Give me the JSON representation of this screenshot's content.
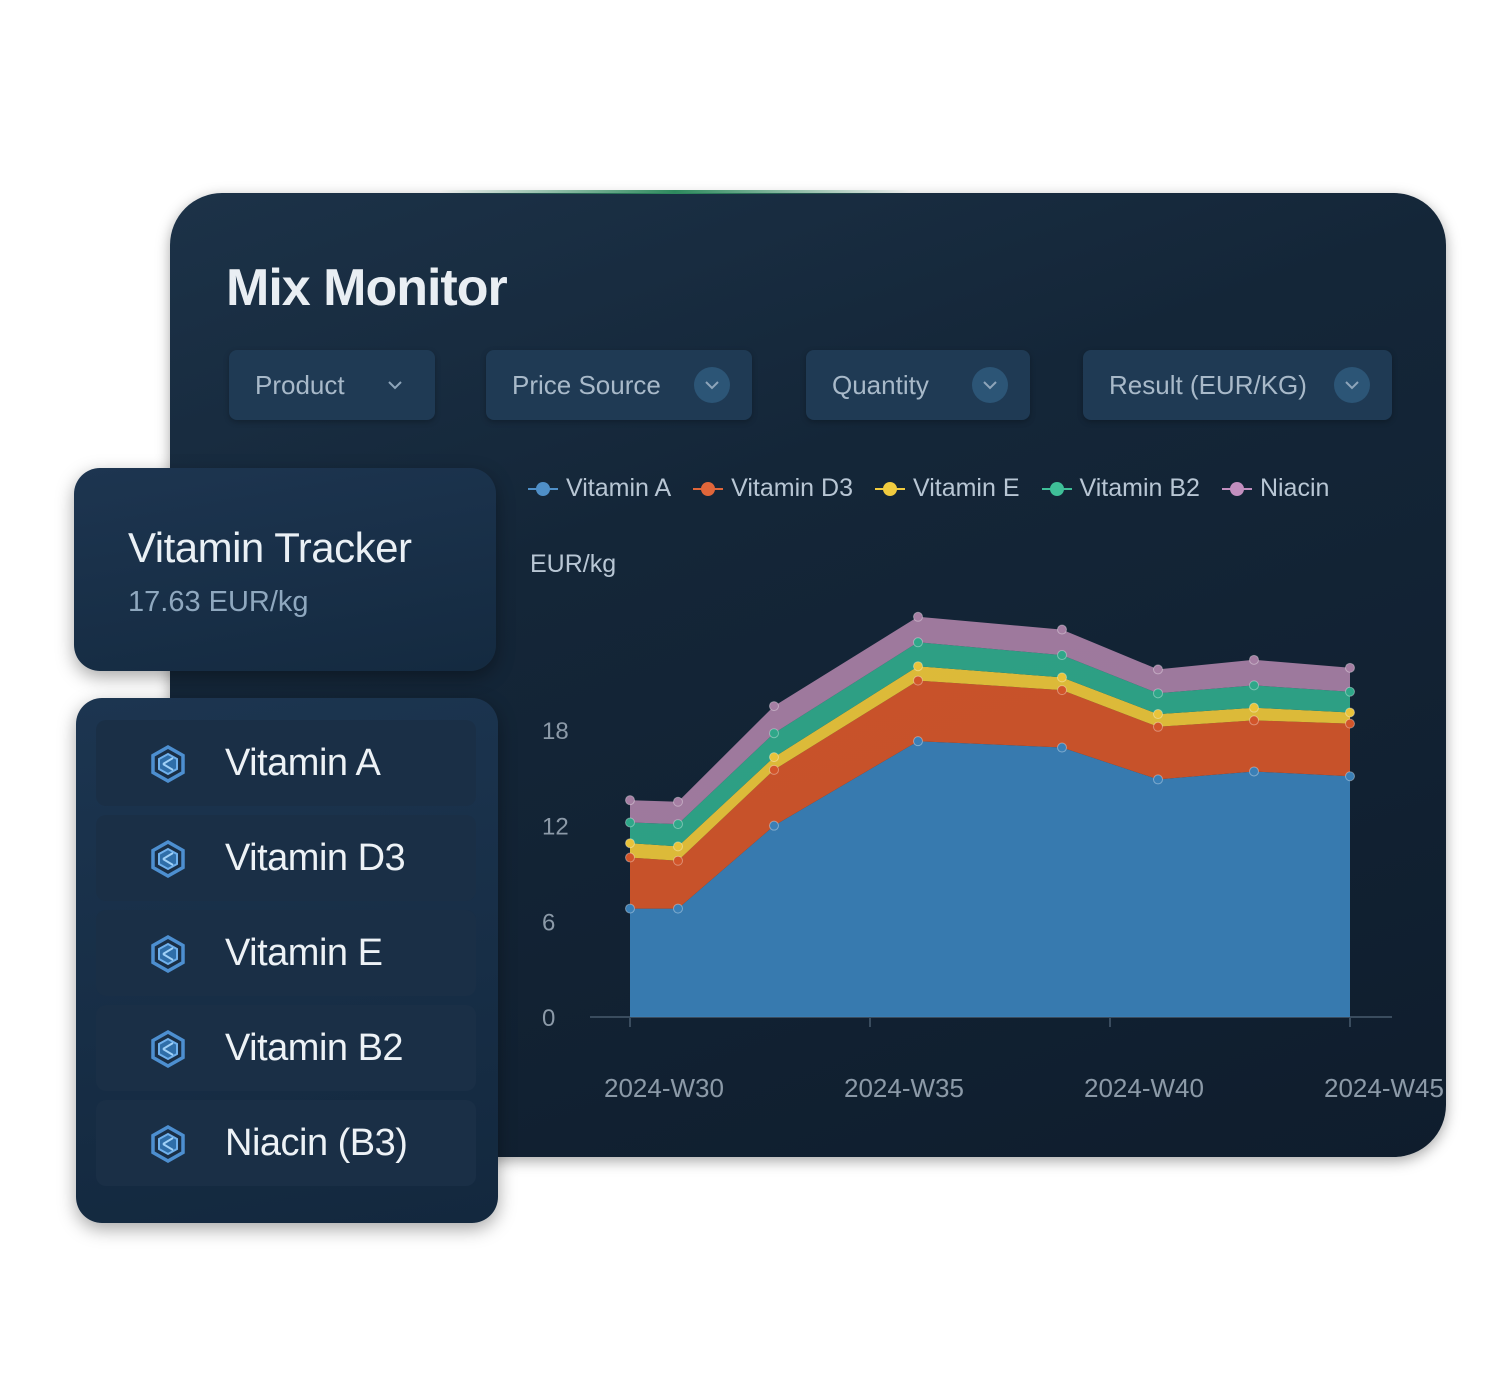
{
  "app": {
    "title": "Mix Monitor"
  },
  "filters": [
    {
      "label": "Product",
      "style": "plain"
    },
    {
      "label": "Price Source",
      "style": "filled"
    },
    {
      "label": "Quantity",
      "style": "filled"
    },
    {
      "label": "Result (EUR/KG)",
      "style": "filled"
    }
  ],
  "tracker": {
    "title": "Vitamin Tracker",
    "value": "17.63 EUR/kg"
  },
  "vitamin_list": [
    {
      "label": "Vitamin A",
      "icon": "hexagon-logo-icon"
    },
    {
      "label": "Vitamin D3",
      "icon": "hexagon-logo-icon"
    },
    {
      "label": "Vitamin E",
      "icon": "hexagon-logo-icon"
    },
    {
      "label": "Vitamin B2",
      "icon": "hexagon-logo-icon"
    },
    {
      "label": "Niacin (B3)",
      "icon": "hexagon-logo-icon"
    }
  ],
  "chart_data": {
    "type": "area",
    "stacked": true,
    "ylabel": "EUR/kg",
    "ylim": [
      0,
      24
    ],
    "yticks": [
      0,
      6,
      12,
      18
    ],
    "x_tick_labels": [
      "2024-W30",
      "2024-W35",
      "2024-W40",
      "2024-W45"
    ],
    "x_tick_weeks": [
      30,
      35,
      40,
      45
    ],
    "x": [
      30,
      31,
      33,
      36,
      39,
      41,
      43,
      45
    ],
    "legend_position": "top",
    "grid": false,
    "series": [
      {
        "name": "Vitamin A",
        "color": "#3a7fb6",
        "values": [
          6.8,
          6.8,
          12.0,
          17.3,
          16.9,
          14.9,
          15.4,
          15.1
        ]
      },
      {
        "name": "Vitamin D3",
        "color": "#d2552a",
        "values": [
          3.2,
          3.0,
          3.5,
          3.8,
          3.6,
          3.3,
          3.2,
          3.3
        ]
      },
      {
        "name": "Vitamin E",
        "color": "#e8c33a",
        "values": [
          0.9,
          0.9,
          0.8,
          0.9,
          0.8,
          0.8,
          0.8,
          0.7
        ]
      },
      {
        "name": "Vitamin B2",
        "color": "#2fa789",
        "values": [
          1.3,
          1.4,
          1.5,
          1.5,
          1.4,
          1.3,
          1.4,
          1.3
        ]
      },
      {
        "name": "Niacin",
        "color": "#a57ea3",
        "values": [
          1.4,
          1.4,
          1.7,
          1.6,
          1.6,
          1.5,
          1.6,
          1.5
        ]
      }
    ]
  }
}
